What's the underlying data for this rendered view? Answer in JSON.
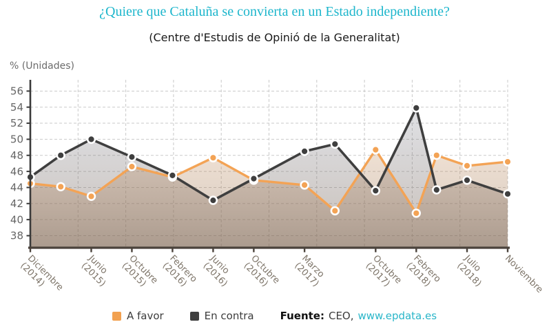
{
  "header": {
    "title": "¿Quiere que Cataluña se convierta en un Estado independiente?",
    "subtitle": "(Centre d'Estudis de Opinió de la Generalitat)"
  },
  "chart_data": {
    "type": "line",
    "title": "¿Quiere que Cataluña se convierta en un Estado independiente?",
    "subtitle": "(Centre d'Estudis de Opinió de la Generalitat)",
    "ylabel": "% (Unidades)",
    "xlabel": "",
    "ylim": [
      36.5,
      57.4
    ],
    "yticks": [
      38,
      40,
      42,
      44,
      46,
      48,
      50,
      52,
      54,
      56
    ],
    "grid": true,
    "legend_position": "bottom",
    "x_months_since_first": [
      0,
      3,
      6,
      10,
      14,
      18,
      22,
      27,
      30,
      34,
      38,
      40,
      43,
      47
    ],
    "categories": [
      "Diciembre\n(2014)",
      "",
      "Junio\n(2015)",
      "Octubre\n(2015)",
      "Febrero\n(2016)",
      "Junio\n(2016)",
      "Octubre\n(2016)",
      "Marzo\n(2017)",
      "",
      "Octubre\n(2017)",
      "Febrero\n(2018)",
      "",
      "Julio\n(2018)",
      "Noviembre"
    ],
    "series": [
      {
        "name": "A favor",
        "color": "#f3a355",
        "values": [
          44.5,
          44.1,
          42.9,
          46.6,
          45.3,
          47.7,
          44.9,
          44.3,
          41.1,
          48.7,
          40.8,
          48.0,
          46.7,
          47.2
        ]
      },
      {
        "name": "En contra",
        "color": "#3f3f3f",
        "values": [
          45.3,
          48.0,
          50.0,
          47.8,
          45.5,
          42.4,
          45.1,
          48.5,
          49.4,
          43.6,
          53.9,
          43.7,
          44.9,
          43.2
        ]
      }
    ]
  },
  "footer": {
    "legend": [
      {
        "label": "A favor",
        "color": "#f2a150"
      },
      {
        "label": "En contra",
        "color": "#3f3f3f"
      }
    ],
    "source_label": "Fuente:",
    "source_text": "CEO,",
    "source_link": "www.epdata.es"
  },
  "colors": {
    "title": "#1db6cc",
    "link": "#29b6c9",
    "axis_y": "#3a3a3a",
    "axis_x": "#4a423b",
    "grid": "#c9c9c9",
    "y_tick_label": "#666666",
    "x_tick_label": "#7d7468"
  }
}
